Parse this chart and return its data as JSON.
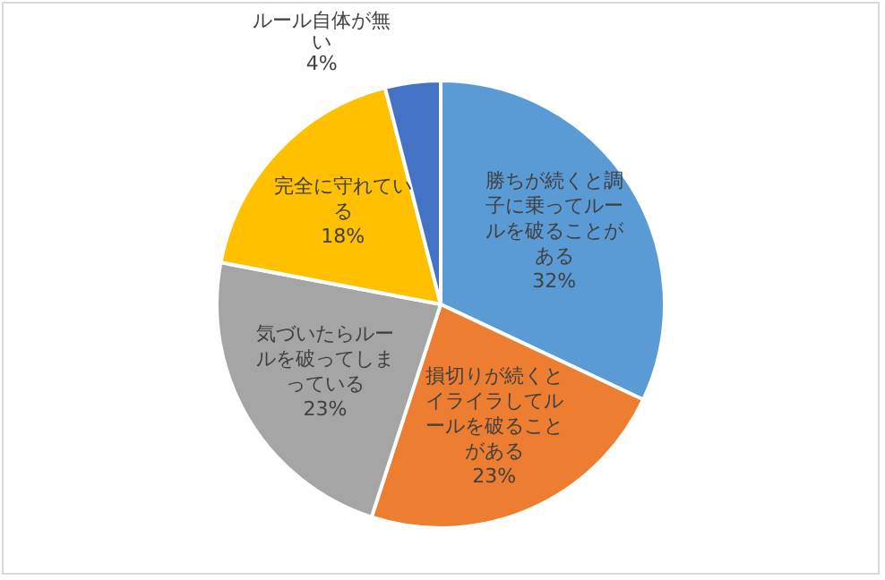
{
  "chart_data": {
    "type": "pie",
    "categories": [
      "勝ちが続くと調子に乗ってルールを破ることがある",
      "損切りが続くとイライラしてルールを破ることがある",
      "気づいたらルールを破ってしまっている",
      "完全に守れている",
      "ルール自体が無い"
    ],
    "values": [
      32,
      23,
      23,
      18,
      4
    ],
    "value_labels": [
      "32%",
      "23%",
      "23%",
      "18%",
      "4%"
    ],
    "colors": [
      "#5b9bd5",
      "#ed7d31",
      "#a5a5a5",
      "#ffc000",
      "#4472c4"
    ],
    "legend": false
  }
}
